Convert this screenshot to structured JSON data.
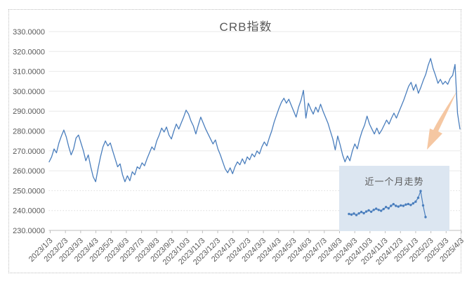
{
  "chart": {
    "title": "CRB指数",
    "inset_title": "近一个月走势",
    "colors": {
      "line": "#4a7ebd",
      "grid": "#e9e9e9",
      "grid_dotted": "#dcdcdc",
      "axis": "#bfbfbf",
      "label": "#595959",
      "inset_bg": "#dce6f1",
      "arrow": "#f5c7a2"
    }
  },
  "chart_data": {
    "type": "line",
    "title": "CRB指数",
    "xlabel": "",
    "ylabel": "",
    "ylim": [
      230,
      330
    ],
    "grid": true,
    "legend": false,
    "y_tick_labels": [
      "230.0000",
      "240.0000",
      "250.0000",
      "260.0000",
      "270.0000",
      "280.0000",
      "290.0000",
      "300.0000",
      "310.0000",
      "320.0000",
      "330.0000"
    ],
    "x_tick_labels": [
      "2023/1/3",
      "2023/2/3",
      "2023/3/3",
      "2023/4/3",
      "2023/5/3",
      "2023/6/3",
      "2023/7/3",
      "2023/8/3",
      "2023/9/3",
      "2023/10/3",
      "2023/11/3",
      "2023/12/3",
      "2024/1/3",
      "2024/2/3",
      "2024/3/3",
      "2024/4/3",
      "2024/5/3",
      "2024/6/3",
      "2024/7/3",
      "2024/8/3",
      "2024/9/3",
      "2024/10/3",
      "2024/11/3",
      "2024/12/3",
      "2025/1/3",
      "2025/2/3",
      "2025/3/3",
      "2025/4/3"
    ],
    "series": [
      {
        "name": "CRB指数",
        "values": [
          264.5,
          267,
          271,
          269,
          274,
          277.5,
          280.5,
          277,
          272,
          268,
          271,
          276.5,
          278,
          274,
          270,
          265,
          268,
          262,
          257,
          254.5,
          261,
          267,
          272,
          275,
          272.5,
          274,
          270,
          266,
          262,
          263.5,
          258,
          254.5,
          257.5,
          255,
          259.5,
          258,
          262,
          261,
          264,
          262.5,
          266,
          269,
          272,
          270.5,
          275,
          278,
          281.5,
          279.5,
          282,
          278,
          276,
          280,
          283.5,
          281,
          284,
          287,
          290.5,
          288.5,
          285,
          282.5,
          278.5,
          283,
          287,
          284,
          281,
          278.5,
          276,
          273.5,
          275.5,
          271,
          268,
          264.5,
          261,
          259,
          261.5,
          258.5,
          262,
          264.5,
          263,
          266,
          263.5,
          267,
          265.5,
          268.5,
          267,
          270,
          268.5,
          272,
          274.5,
          272.5,
          276.5,
          280,
          284.5,
          288,
          291.5,
          294.5,
          296.5,
          294,
          296,
          293,
          290,
          287,
          292,
          295.5,
          300.5,
          286.5,
          294,
          291,
          288.5,
          292,
          289.5,
          293.5,
          290,
          287,
          284,
          280,
          276,
          270.5,
          277.5,
          273,
          268,
          264.5,
          267.5,
          265,
          270,
          273.5,
          271,
          276,
          280,
          283,
          287.5,
          283.5,
          281,
          278.5,
          281.5,
          278.5,
          280.5,
          283,
          285.5,
          283.5,
          286.5,
          289,
          286.5,
          289.5,
          292.5,
          295.5,
          299,
          302.5,
          304.5,
          300.5,
          303.5,
          299,
          302,
          305.5,
          308.5,
          313,
          316.5,
          311.5,
          308,
          304,
          306,
          303.5,
          305,
          303.5,
          306.5,
          308,
          313.5,
          289,
          281
        ]
      }
    ],
    "inset": {
      "title": "近一个月走势",
      "type": "line",
      "markers": true,
      "values": [
        302.3,
        302.0,
        302.5,
        301.8,
        302.6,
        303.3,
        302.7,
        303.5,
        304.1,
        303.4,
        304.3,
        304.9,
        304.3,
        303.9,
        304.7,
        305.7,
        305.1,
        306.3,
        307.1,
        306.3,
        305.9,
        306.5,
        306.3,
        306.9,
        307.2,
        306.7,
        307.5,
        308.3,
        310.2,
        313.5,
        306.5,
        300.8
      ]
    },
    "annotations": [
      {
        "shape": "arrow",
        "direction": "down-left",
        "note": "points from recent peak toward inset panel"
      }
    ]
  }
}
